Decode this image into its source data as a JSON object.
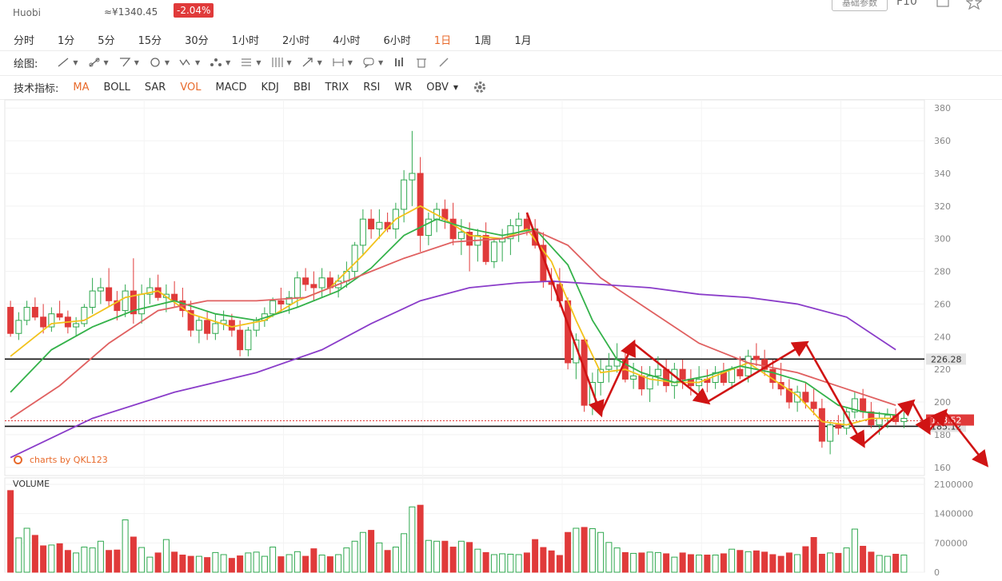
{
  "header": {
    "exchange": "Huobi",
    "cny_price": "≈¥1340.45",
    "change": "-2.04%",
    "params_button": "基础参数",
    "f10": "F10"
  },
  "periods": {
    "items": [
      "分时",
      "1分",
      "5分",
      "15分",
      "30分",
      "1小时",
      "2小时",
      "4小时",
      "6小时",
      "1日",
      "1周",
      "1月"
    ],
    "active": "1日"
  },
  "draw_toolbar": {
    "label": "绘图:"
  },
  "indicators": {
    "label": "技术指标:",
    "items": [
      "MA",
      "BOLL",
      "SAR",
      "VOL",
      "MACD",
      "KDJ",
      "BBI",
      "TRIX",
      "RSI",
      "WR",
      "OBV"
    ],
    "highlighted": [
      "MA",
      "VOL"
    ]
  },
  "watermark": "charts by QKL123",
  "volume_label": "VOLUME",
  "colors": {
    "up": "#2fa84f",
    "down": "#e03a3a",
    "ma5": "#f2c21b",
    "ma10": "#34b24a",
    "ma20": "#e06060",
    "ma60": "#8a3cc9",
    "annotation": "#d01414"
  },
  "chart_data": {
    "type": "candlestick",
    "price_axis": {
      "ticks": [
        160,
        180,
        200,
        220,
        240,
        260,
        280,
        300,
        320,
        340,
        360,
        380
      ],
      "ylim": [
        155,
        385
      ]
    },
    "volume_axis": {
      "ticks": [
        "0",
        "700000",
        "1400000",
        "2100000"
      ],
      "ylim": [
        0,
        2100000
      ]
    },
    "horizontal_lines": [
      {
        "value": 226.28,
        "label": "226.28"
      },
      {
        "value": 185.12,
        "label": "185.12"
      }
    ],
    "current_price": {
      "value": 188.5,
      "label": "188.52"
    },
    "ohlc": [
      [
        258,
        262,
        240,
        242
      ],
      [
        242,
        255,
        238,
        250
      ],
      [
        250,
        262,
        247,
        258
      ],
      [
        258,
        264,
        250,
        252
      ],
      [
        252,
        260,
        242,
        246
      ],
      [
        246,
        258,
        243,
        254
      ],
      [
        254,
        262,
        250,
        252
      ],
      [
        252,
        256,
        242,
        246
      ],
      [
        246,
        252,
        240,
        248
      ],
      [
        248,
        260,
        246,
        258
      ],
      [
        258,
        276,
        254,
        268
      ],
      [
        268,
        276,
        260,
        270
      ],
      [
        270,
        282,
        258,
        262
      ],
      [
        262,
        268,
        250,
        256
      ],
      [
        256,
        272,
        252,
        268
      ],
      [
        268,
        288,
        248,
        254
      ],
      [
        254,
        272,
        248,
        266
      ],
      [
        266,
        276,
        260,
        270
      ],
      [
        270,
        278,
        262,
        264
      ],
      [
        264,
        272,
        255,
        266
      ],
      [
        266,
        274,
        258,
        262
      ],
      [
        262,
        270,
        252,
        256
      ],
      [
        256,
        262,
        240,
        244
      ],
      [
        244,
        252,
        236,
        250
      ],
      [
        250,
        256,
        238,
        242
      ],
      [
        242,
        254,
        238,
        248
      ],
      [
        248,
        256,
        244,
        250
      ],
      [
        250,
        254,
        240,
        244
      ],
      [
        244,
        250,
        228,
        232
      ],
      [
        232,
        246,
        228,
        244
      ],
      [
        244,
        252,
        240,
        250
      ],
      [
        250,
        258,
        246,
        254
      ],
      [
        254,
        264,
        252,
        262
      ],
      [
        262,
        270,
        255,
        260
      ],
      [
        260,
        268,
        254,
        264
      ],
      [
        264,
        280,
        258,
        276
      ],
      [
        276,
        282,
        268,
        272
      ],
      [
        272,
        280,
        262,
        270
      ],
      [
        270,
        282,
        264,
        276
      ],
      [
        276,
        280,
        266,
        270
      ],
      [
        270,
        278,
        264,
        274
      ],
      [
        274,
        286,
        270,
        280
      ],
      [
        280,
        298,
        276,
        296
      ],
      [
        296,
        318,
        290,
        312
      ],
      [
        312,
        318,
        300,
        306
      ],
      [
        306,
        318,
        300,
        310
      ],
      [
        310,
        316,
        304,
        306
      ],
      [
        306,
        322,
        300,
        318
      ],
      [
        318,
        342,
        310,
        336
      ],
      [
        336,
        366,
        320,
        340
      ],
      [
        340,
        350,
        292,
        302
      ],
      [
        302,
        316,
        296,
        312
      ],
      [
        312,
        322,
        304,
        318
      ],
      [
        318,
        324,
        306,
        312
      ],
      [
        312,
        322,
        296,
        300
      ],
      [
        300,
        312,
        290,
        304
      ],
      [
        304,
        310,
        280,
        296
      ],
      [
        296,
        306,
        286,
        302
      ],
      [
        302,
        310,
        284,
        286
      ],
      [
        286,
        300,
        282,
        298
      ],
      [
        298,
        306,
        286,
        300
      ],
      [
        300,
        312,
        290,
        308
      ],
      [
        308,
        316,
        298,
        312
      ],
      [
        312,
        316,
        302,
        306
      ],
      [
        306,
        312,
        294,
        296
      ],
      [
        296,
        304,
        270,
        274
      ],
      [
        274,
        282,
        262,
        272
      ],
      [
        272,
        282,
        258,
        262
      ],
      [
        262,
        264,
        220,
        224
      ],
      [
        224,
        242,
        214,
        238
      ],
      [
        238,
        240,
        194,
        198
      ],
      [
        198,
        218,
        192,
        212
      ],
      [
        212,
        226,
        204,
        220
      ],
      [
        220,
        230,
        212,
        222
      ],
      [
        222,
        236,
        218,
        226
      ],
      [
        226,
        232,
        212,
        214
      ],
      [
        214,
        224,
        208,
        216
      ],
      [
        216,
        222,
        204,
        208
      ],
      [
        208,
        222,
        200,
        216
      ],
      [
        216,
        228,
        210,
        220
      ],
      [
        220,
        226,
        206,
        210
      ],
      [
        210,
        224,
        202,
        220
      ],
      [
        220,
        226,
        208,
        214
      ],
      [
        214,
        220,
        204,
        210
      ],
      [
        210,
        222,
        206,
        214
      ],
      [
        214,
        220,
        206,
        212
      ],
      [
        212,
        222,
        208,
        218
      ],
      [
        218,
        224,
        210,
        212
      ],
      [
        212,
        222,
        208,
        220
      ],
      [
        220,
        228,
        214,
        216
      ],
      [
        216,
        232,
        212,
        228
      ],
      [
        228,
        236,
        222,
        226
      ],
      [
        226,
        232,
        216,
        220
      ],
      [
        220,
        226,
        208,
        212
      ],
      [
        212,
        224,
        204,
        208
      ],
      [
        208,
        214,
        196,
        200
      ],
      [
        200,
        210,
        194,
        206
      ],
      [
        206,
        212,
        196,
        200
      ],
      [
        200,
        208,
        192,
        196
      ],
      [
        196,
        202,
        172,
        176
      ],
      [
        176,
        188,
        168,
        186
      ],
      [
        186,
        192,
        180,
        184
      ],
      [
        184,
        196,
        180,
        194
      ],
      [
        194,
        206,
        190,
        202
      ],
      [
        202,
        208,
        190,
        194
      ],
      [
        194,
        200,
        184,
        186
      ],
      [
        186,
        194,
        180,
        190
      ],
      [
        190,
        196,
        184,
        192
      ],
      [
        192,
        196,
        186,
        188
      ],
      [
        188,
        194,
        184,
        190
      ]
    ],
    "volume": [
      1950000,
      820000,
      1050000,
      880000,
      630000,
      650000,
      680000,
      520000,
      460000,
      600000,
      580000,
      740000,
      520000,
      530000,
      1250000,
      840000,
      590000,
      360000,
      460000,
      780000,
      480000,
      410000,
      380000,
      380000,
      350000,
      470000,
      420000,
      330000,
      390000,
      460000,
      480000,
      380000,
      600000,
      370000,
      420000,
      490000,
      380000,
      560000,
      410000,
      370000,
      420000,
      580000,
      740000,
      950000,
      1000000,
      700000,
      520000,
      600000,
      920000,
      1560000,
      1600000,
      760000,
      740000,
      740000,
      600000,
      740000,
      710000,
      550000,
      470000,
      420000,
      440000,
      430000,
      420000,
      460000,
      780000,
      590000,
      510000,
      400000,
      950000,
      1050000,
      1070000,
      1040000,
      950000,
      710000,
      580000,
      470000,
      450000,
      460000,
      480000,
      470000,
      440000,
      360000,
      460000,
      420000,
      410000,
      410000,
      410000,
      440000,
      550000,
      520000,
      490000,
      510000,
      480000,
      420000,
      380000,
      460000,
      420000,
      610000,
      830000,
      430000,
      460000,
      450000,
      580000,
      1030000,
      620000,
      480000,
      400000,
      380000,
      430000,
      410000
    ],
    "ma_series": [
      {
        "id": "ma5",
        "values": [
          [
            0,
            228
          ],
          [
            5,
            248
          ],
          [
            9,
            250
          ],
          [
            14,
            264
          ],
          [
            18,
            268
          ],
          [
            22,
            254
          ],
          [
            27,
            246
          ],
          [
            31,
            250
          ],
          [
            35,
            262
          ],
          [
            39,
            270
          ],
          [
            43,
            290
          ],
          [
            47,
            312
          ],
          [
            50,
            320
          ],
          [
            53,
            312
          ],
          [
            56,
            302
          ],
          [
            60,
            300
          ],
          [
            63,
            306
          ],
          [
            66,
            286
          ],
          [
            69,
            250
          ],
          [
            72,
            218
          ],
          [
            75,
            220
          ],
          [
            78,
            214
          ],
          [
            81,
            212
          ],
          [
            84,
            212
          ],
          [
            87,
            218
          ],
          [
            90,
            224
          ],
          [
            93,
            214
          ],
          [
            96,
            204
          ],
          [
            99,
            188
          ],
          [
            102,
            186
          ],
          [
            105,
            190
          ],
          [
            108,
            190
          ]
        ]
      },
      {
        "id": "ma10",
        "values": [
          [
            0,
            206
          ],
          [
            5,
            232
          ],
          [
            10,
            246
          ],
          [
            15,
            256
          ],
          [
            20,
            262
          ],
          [
            25,
            254
          ],
          [
            30,
            250
          ],
          [
            35,
            258
          ],
          [
            40,
            268
          ],
          [
            44,
            282
          ],
          [
            48,
            302
          ],
          [
            52,
            312
          ],
          [
            56,
            306
          ],
          [
            60,
            302
          ],
          [
            64,
            306
          ],
          [
            68,
            284
          ],
          [
            71,
            250
          ],
          [
            74,
            226
          ],
          [
            77,
            218
          ],
          [
            81,
            212
          ],
          [
            85,
            216
          ],
          [
            89,
            222
          ],
          [
            93,
            218
          ],
          [
            97,
            212
          ],
          [
            101,
            198
          ],
          [
            104,
            194
          ],
          [
            108,
            192
          ]
        ]
      },
      {
        "id": "ma20",
        "values": [
          [
            0,
            190
          ],
          [
            6,
            210
          ],
          [
            12,
            236
          ],
          [
            18,
            256
          ],
          [
            24,
            262
          ],
          [
            30,
            262
          ],
          [
            36,
            264
          ],
          [
            42,
            276
          ],
          [
            48,
            288
          ],
          [
            54,
            298
          ],
          [
            60,
            300
          ],
          [
            64,
            305
          ],
          [
            68,
            296
          ],
          [
            72,
            276
          ],
          [
            78,
            256
          ],
          [
            84,
            236
          ],
          [
            90,
            224
          ],
          [
            96,
            218
          ],
          [
            102,
            208
          ],
          [
            108,
            198
          ]
        ]
      },
      {
        "id": "ma60",
        "values": [
          [
            0,
            166
          ],
          [
            10,
            190
          ],
          [
            20,
            206
          ],
          [
            30,
            218
          ],
          [
            38,
            232
          ],
          [
            44,
            248
          ],
          [
            50,
            262
          ],
          [
            56,
            270
          ],
          [
            62,
            273
          ],
          [
            66,
            274
          ],
          [
            72,
            272
          ],
          [
            78,
            270
          ],
          [
            84,
            266
          ],
          [
            90,
            264
          ],
          [
            96,
            260
          ],
          [
            102,
            252
          ],
          [
            108,
            232
          ]
        ]
      }
    ],
    "annotations": {
      "zigzag_arrows": [
        [
          [
            63,
            316
          ],
          [
            72,
            193
          ]
        ],
        [
          [
            72,
            193
          ],
          [
            76,
            236
          ]
        ],
        [
          [
            76,
            236
          ],
          [
            85,
            200
          ]
        ],
        [
          [
            85,
            200
          ],
          [
            97,
            236
          ]
        ],
        [
          [
            97,
            236
          ],
          [
            104,
            174
          ]
        ],
        [
          [
            104,
            174
          ],
          [
            110,
            200
          ]
        ],
        [
          [
            110,
            200
          ],
          [
            112,
            182
          ]
        ],
        [
          [
            112,
            182
          ],
          [
            114,
            194
          ]
        ],
        [
          [
            114,
            194
          ],
          [
            119,
            162
          ]
        ]
      ]
    }
  }
}
